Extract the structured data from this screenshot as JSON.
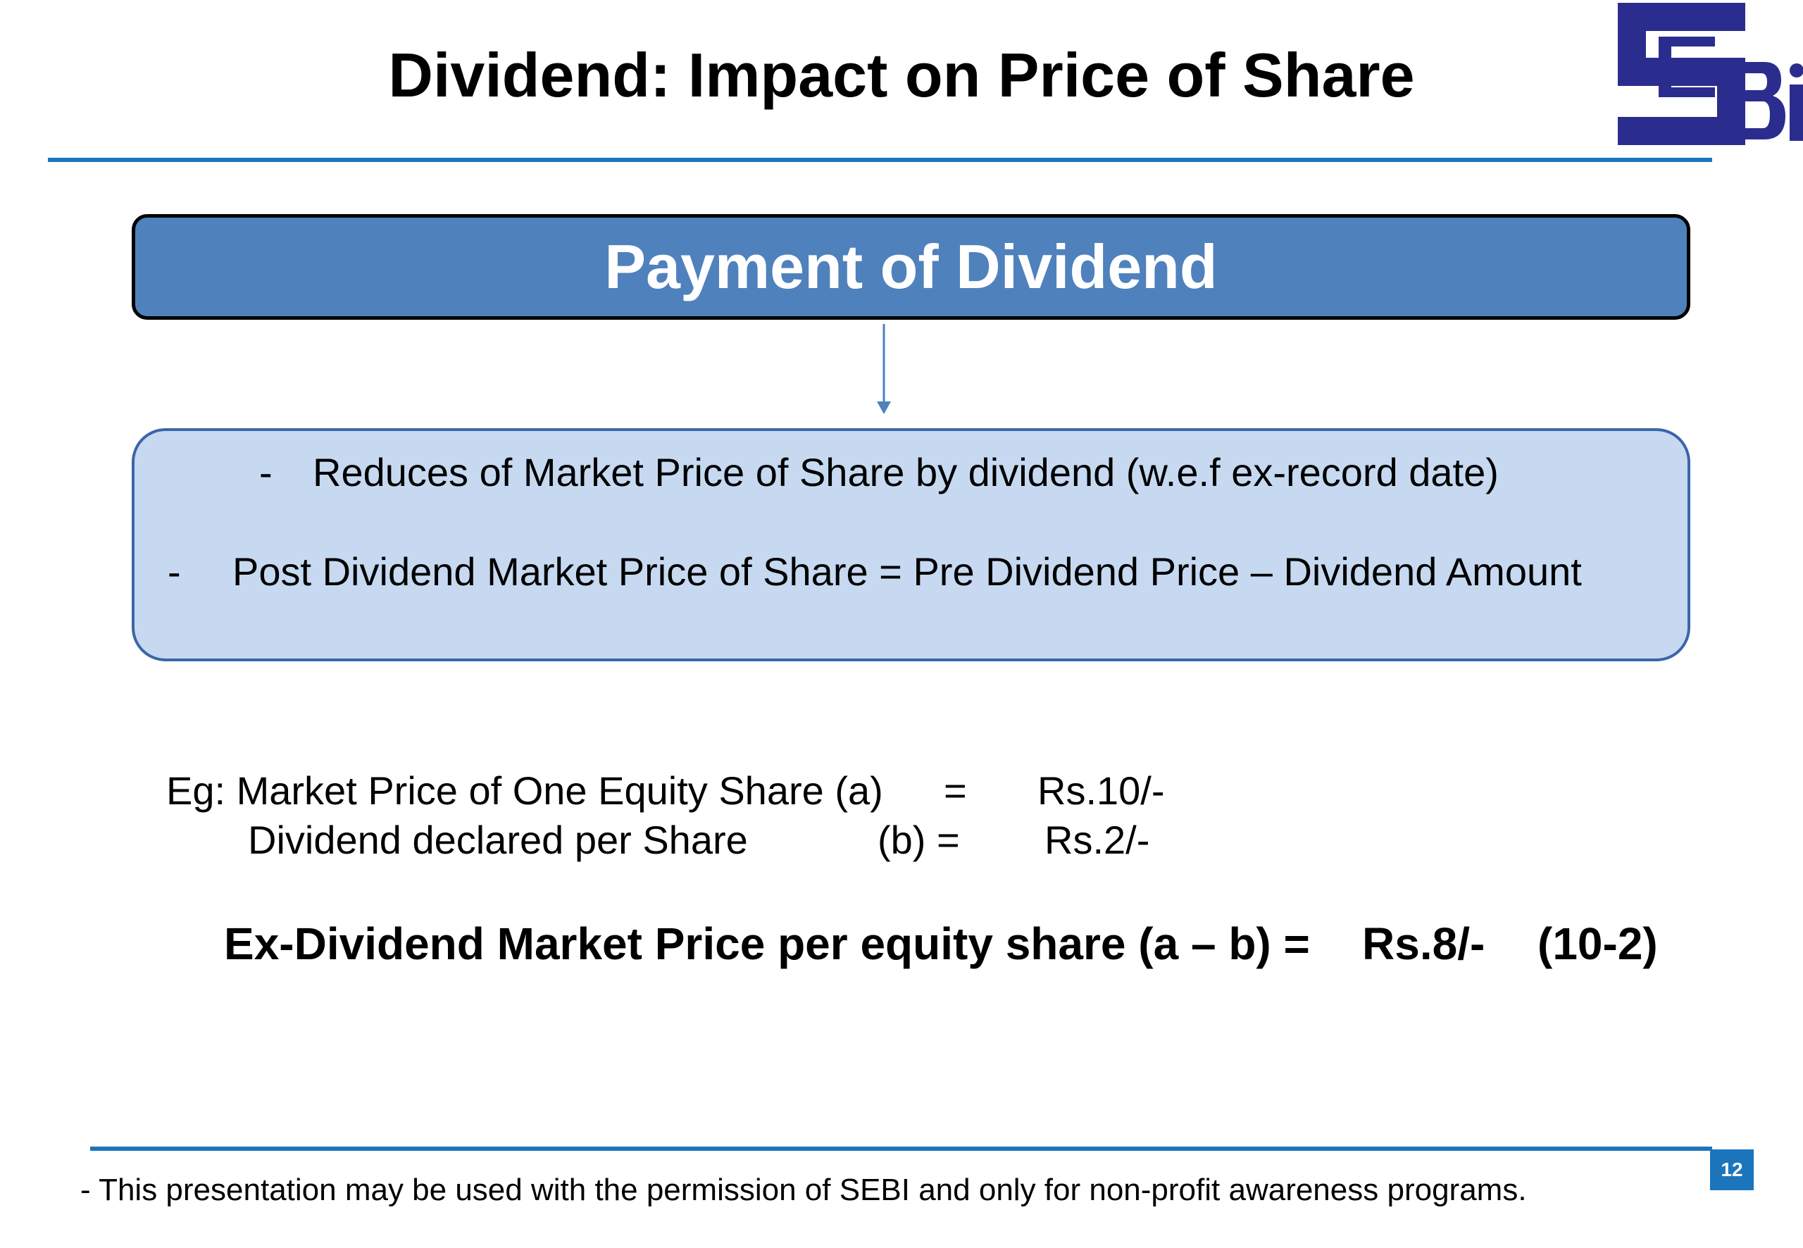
{
  "slide": {
    "title": "Dividend: Impact on Price of Share",
    "page_number": "12",
    "footer_note": "- This presentation may be used with the permission of SEBI and only for non-profit awareness programs."
  },
  "logo": {
    "name": "sebi-logo",
    "letters": "SEBI",
    "color": "#2b2d8e"
  },
  "flow": {
    "top_box_label": "Payment of Dividend",
    "effects": [
      {
        "bullet": "-",
        "text": "Reduces of Market Price of Share by dividend (w.e.f ex-record date)"
      },
      {
        "bullet": "-",
        "text": "Post Dividend Market Price of Share = Pre Dividend Price – Dividend Amount"
      }
    ]
  },
  "example": {
    "line_a_label": "Eg: Market Price of One Equity Share (a)",
    "line_a_eq": "=",
    "line_a_value": "Rs.10/-",
    "line_b_label": "Dividend declared per Share",
    "line_b_eq": "(b) =",
    "line_b_value": "Rs.2/-",
    "result_label": "Ex-Dividend Market Price per equity share (a – b) =",
    "result_value": "Rs.8/-",
    "result_calc": "(10-2)"
  },
  "colors": {
    "accent_blue": "#1b75bc",
    "box_blue": "#4f81bd",
    "light_box": "#c6d9f1",
    "light_box_border": "#3a66a8"
  }
}
